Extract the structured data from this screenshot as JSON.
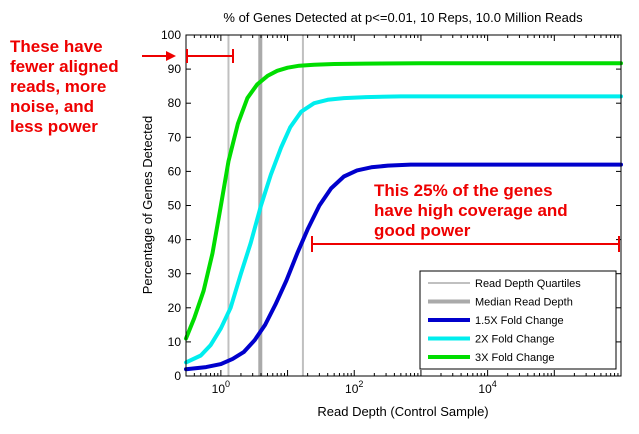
{
  "chart_data": {
    "type": "line",
    "title": "% of Genes Detected at p<=0.01, 10 Reps, 10.0 Million Reads",
    "xlabel": "Read Depth (Control Sample)",
    "ylabel": "Percentage of Genes Detected",
    "xscale": "log",
    "xlim": [
      0.3,
      1000000
    ],
    "ylim": [
      0,
      100
    ],
    "xticks": [
      1,
      100,
      10000
    ],
    "xtick_labels": [
      {
        "base": "10",
        "exp": "0"
      },
      {
        "base": "10",
        "exp": "2"
      },
      {
        "base": "10",
        "exp": "4"
      }
    ],
    "yticks": [
      0,
      10,
      20,
      30,
      40,
      50,
      60,
      70,
      80,
      90,
      100
    ],
    "grid": false,
    "legend_position": "bottom-right",
    "vertical_lines": [
      {
        "name": "Read Depth Quartiles",
        "x": [
          1.3,
          17
        ],
        "color": "#c0c0c0"
      },
      {
        "name": "Median Read Depth",
        "x": [
          3.9
        ],
        "color": "#aaaaaa"
      }
    ],
    "series": [
      {
        "name": "1.5X Fold Change",
        "color": "#0000cc",
        "x": [
          0.3,
          0.6,
          1,
          1.5,
          2.2,
          3.2,
          4.6,
          6.6,
          9.6,
          14,
          20,
          30,
          45,
          70,
          110,
          180,
          320,
          700,
          2000,
          10000,
          100000,
          1000000
        ],
        "y": [
          2,
          2.6,
          3.5,
          5,
          7,
          10.5,
          15,
          21,
          28,
          36,
          43,
          50,
          55,
          58.5,
          60.3,
          61.2,
          61.7,
          62,
          62,
          62,
          62,
          62
        ]
      },
      {
        "name": "2X Fold Change",
        "color": "#00eeee",
        "x": [
          0.3,
          0.5,
          0.7,
          1,
          1.4,
          2,
          2.8,
          4,
          5.6,
          8,
          11,
          16,
          25,
          40,
          70,
          150,
          500,
          3000,
          100000,
          1000000
        ],
        "y": [
          4,
          6,
          9,
          14,
          20,
          30,
          39,
          50,
          59,
          67,
          73,
          77.5,
          80,
          81,
          81.5,
          81.8,
          82,
          82,
          82,
          82
        ]
      },
      {
        "name": "3X Fold Change",
        "color": "#00dd00",
        "x": [
          0.3,
          0.4,
          0.55,
          0.75,
          1,
          1.3,
          1.8,
          2.5,
          3.5,
          5,
          7,
          10,
          15,
          25,
          50,
          150,
          1000,
          100000,
          1000000
        ],
        "y": [
          11,
          17,
          25,
          36,
          50,
          63,
          74,
          81.5,
          85.5,
          88,
          89.5,
          90.4,
          91,
          91.3,
          91.5,
          91.6,
          91.7,
          91.7,
          91.7
        ]
      }
    ],
    "annotations": [
      {
        "name": "left",
        "text": "These have\nfewer aligned\nreads, more\nnoise, and\nless power"
      },
      {
        "name": "right",
        "text": "This 25% of the genes\nhave high coverage and\ngood power"
      }
    ]
  },
  "colors": {
    "annotation": "#ee0000",
    "axes": "#000000",
    "background": "#ffffff"
  }
}
